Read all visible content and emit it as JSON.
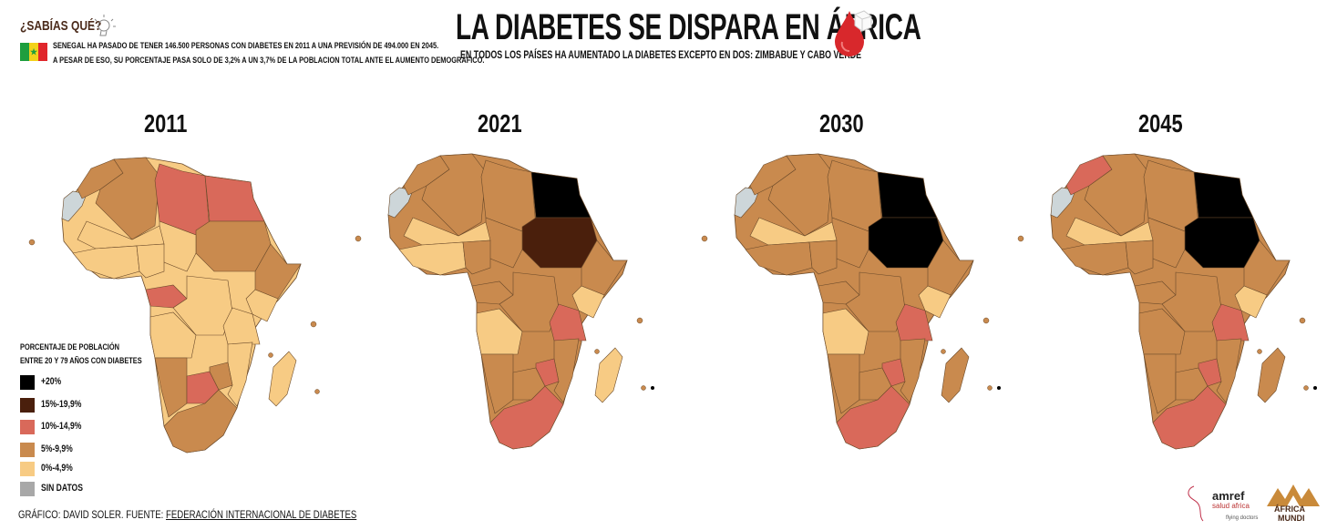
{
  "fact": {
    "title": "¿SABÍAS QUÉ?",
    "line1": "SENEGAL HA PASADO DE TENER 146.500 PERSONAS CON DIABETES EN 2011 A UNA PREVISIÓN DE 494.000 EN 2045.",
    "line2": "A PESAR DE ESO, SU PORCENTAJE PASA SOLO DE 3,2% A UN 3,7% DE LA POBLACION TOTAL ANTE EL AUMENTO DEMOGRÁFICO.",
    "flag_colors": [
      "#1e9e3e",
      "#f3d21a",
      "#e0262b"
    ]
  },
  "header": {
    "title": "LA DIABETES SE DISPARA EN ÁFRICA",
    "subtitle": "EN TODOS LOS PAÍSES HA AUMENTADO LA DIABETES EXCEPTO EN DOS: ZIMBABUE Y CABO VERDE"
  },
  "legend": {
    "title1": "PORCENTAJE DE POBLACIÓN",
    "title2": "ENTRE 20 Y 79 AÑOS CON DIABETES",
    "items": [
      {
        "key": "black",
        "label": "+20%",
        "color": "#000000"
      },
      {
        "key": "dark",
        "label": "15%-19,9%",
        "color": "#4a1f0c"
      },
      {
        "key": "red",
        "label": "10%-14,9%",
        "color": "#d9695a"
      },
      {
        "key": "medium",
        "label": "5%-9,9%",
        "color": "#c98a4e"
      },
      {
        "key": "light",
        "label": "0%-4,9%",
        "color": "#f7cb84"
      },
      {
        "key": "gray",
        "label": "SIN DATOS",
        "color": "#a8a8a8"
      }
    ]
  },
  "maps": [
    {
      "year": "2011",
      "base": "light",
      "regions": {
        "westsahara": "gray",
        "morocco": "medium",
        "algeria": "medium",
        "libya": "red",
        "egypt": "red",
        "sudan": "medium",
        "chad": "light",
        "horn": "medium",
        "kenya": "light",
        "gabon": "red",
        "drc": "light",
        "angola": "light",
        "namibia": "medium",
        "botswana": "red",
        "zimbabwe": "medium",
        "southafrica": "medium",
        "mozambique": "light",
        "tanzania": "light",
        "madagascar": "light",
        "sahel": "light",
        "westafrica": "light",
        "nigeria": "light"
      }
    },
    {
      "year": "2021",
      "base": "medium",
      "regions": {
        "westsahara": "gray",
        "morocco": "medium",
        "algeria": "medium",
        "libya": "medium",
        "egypt": "black",
        "sudan": "dark",
        "chad": "medium",
        "horn": "medium",
        "kenya": "light",
        "gabon": "medium",
        "drc": "medium",
        "angola": "light",
        "namibia": "medium",
        "botswana": "medium",
        "zimbabwe": "red",
        "southafrica": "red",
        "mozambique": "medium",
        "tanzania": "red",
        "madagascar": "light",
        "sahel": "light",
        "westafrica": "light",
        "nigeria": "medium"
      }
    },
    {
      "year": "2030",
      "base": "medium",
      "regions": {
        "westsahara": "gray",
        "morocco": "medium",
        "algeria": "medium",
        "libya": "medium",
        "egypt": "black",
        "sudan": "black",
        "chad": "medium",
        "horn": "medium",
        "kenya": "light",
        "gabon": "medium",
        "drc": "medium",
        "angola": "light",
        "namibia": "medium",
        "botswana": "medium",
        "zimbabwe": "red",
        "southafrica": "red",
        "mozambique": "medium",
        "tanzania": "red",
        "madagascar": "medium",
        "sahel": "light",
        "westafrica": "medium",
        "nigeria": "medium"
      }
    },
    {
      "year": "2045",
      "base": "medium",
      "regions": {
        "westsahara": "gray",
        "morocco": "red",
        "algeria": "medium",
        "libya": "medium",
        "egypt": "black",
        "sudan": "black",
        "chad": "medium",
        "horn": "medium",
        "kenya": "light",
        "gabon": "medium",
        "drc": "medium",
        "angola": "medium",
        "namibia": "medium",
        "botswana": "medium",
        "zimbabwe": "red",
        "southafrica": "red",
        "mozambique": "medium",
        "tanzania": "red",
        "madagascar": "medium",
        "sahel": "light",
        "westafrica": "medium",
        "nigeria": "medium"
      }
    }
  ],
  "footer": {
    "credit": "GRÁFICO: DAVID SOLER. FUENTE: ",
    "source": "FEDERACIÓN INTERNACIONAL DE DIABETES"
  },
  "logos": {
    "amref_name": "amref",
    "amref_sub": "salud africa",
    "amref_tag": "flying doctors",
    "mundi_line1": "ÁFRICA",
    "mundi_line2": "MUNDI"
  }
}
